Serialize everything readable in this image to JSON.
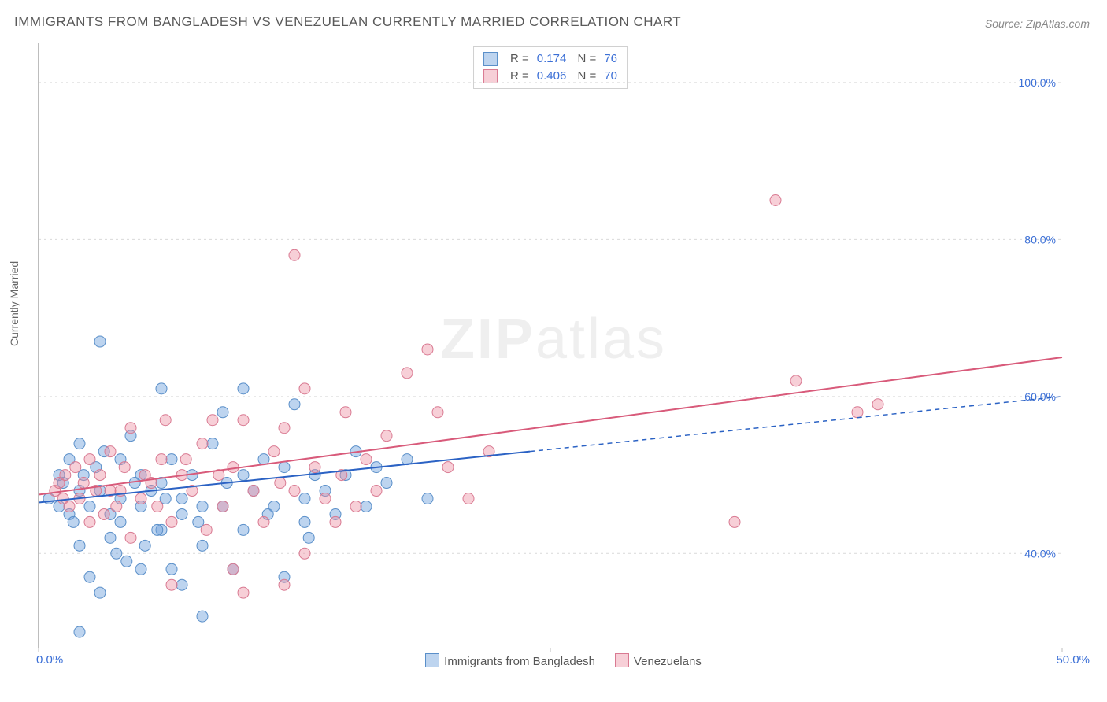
{
  "title": "IMMIGRANTS FROM BANGLADESH VS VENEZUELAN CURRENTLY MARRIED CORRELATION CHART",
  "source": "Source: ZipAtlas.com",
  "ylabel": "Currently Married",
  "watermark": {
    "bold": "ZIP",
    "light": "atlas"
  },
  "chart": {
    "type": "scatter",
    "xlim": [
      0,
      50
    ],
    "ylim": [
      28,
      105
    ],
    "xticks": [
      0,
      25,
      50
    ],
    "xtick_labels": [
      "0.0%",
      "",
      "50.0%"
    ],
    "yticks": [
      40,
      60,
      80,
      100
    ],
    "ytick_labels": [
      "40.0%",
      "60.0%",
      "80.0%",
      "100.0%"
    ],
    "background_color": "#ffffff",
    "grid_color": "#d9d9d9",
    "axis_color": "#bdbdbd",
    "marker_radius": 7,
    "marker_opacity": 0.55,
    "series": [
      {
        "id": "bangladesh",
        "label": "Immigrants from Bangladesh",
        "fill": "rgba(108,160,220,0.45)",
        "stroke": "#5a8fc9",
        "line_color": "#2b62c4",
        "r": 0.174,
        "n": 76,
        "points": [
          [
            0.5,
            47
          ],
          [
            1,
            46
          ],
          [
            1.2,
            49
          ],
          [
            1.5,
            45
          ],
          [
            1.5,
            52
          ],
          [
            1.7,
            44
          ],
          [
            2,
            48
          ],
          [
            2,
            54
          ],
          [
            2,
            41
          ],
          [
            2.2,
            50
          ],
          [
            2.5,
            46
          ],
          [
            2.5,
            37
          ],
          [
            3,
            67
          ],
          [
            3,
            48
          ],
          [
            3.2,
            53
          ],
          [
            3.5,
            45
          ],
          [
            3.5,
            42
          ],
          [
            4,
            52
          ],
          [
            4,
            47
          ],
          [
            4.3,
            39
          ],
          [
            4.5,
            55
          ],
          [
            5,
            46
          ],
          [
            5,
            50
          ],
          [
            5.2,
            41
          ],
          [
            5.5,
            48
          ],
          [
            6,
            61
          ],
          [
            6,
            43
          ],
          [
            6.5,
            52
          ],
          [
            6.5,
            38
          ],
          [
            7,
            47
          ],
          [
            7,
            45
          ],
          [
            7.5,
            50
          ],
          [
            8,
            32
          ],
          [
            8,
            41
          ],
          [
            8.5,
            54
          ],
          [
            9,
            46
          ],
          [
            9,
            58
          ],
          [
            9.5,
            38
          ],
          [
            10,
            61
          ],
          [
            10,
            50
          ],
          [
            10,
            43
          ],
          [
            10.5,
            48
          ],
          [
            11,
            52
          ],
          [
            11.5,
            46
          ],
          [
            12,
            51
          ],
          [
            12,
            37
          ],
          [
            12.5,
            59
          ],
          [
            13,
            47
          ],
          [
            13,
            44
          ],
          [
            13.5,
            50
          ],
          [
            14,
            48
          ],
          [
            15,
            50
          ],
          [
            15.5,
            53
          ],
          [
            16,
            46
          ],
          [
            16.5,
            51
          ],
          [
            17,
            49
          ],
          [
            18,
            52
          ],
          [
            19,
            47
          ],
          [
            2,
            30
          ],
          [
            3,
            35
          ],
          [
            7,
            36
          ],
          [
            5,
            38
          ],
          [
            4,
            44
          ],
          [
            6,
            49
          ],
          [
            8,
            46
          ],
          [
            1,
            50
          ],
          [
            2.8,
            51
          ],
          [
            4.7,
            49
          ],
          [
            6.2,
            47
          ],
          [
            7.8,
            44
          ],
          [
            9.2,
            49
          ],
          [
            11.2,
            45
          ],
          [
            13.2,
            42
          ],
          [
            14.5,
            45
          ],
          [
            3.8,
            40
          ],
          [
            5.8,
            43
          ]
        ],
        "trend": {
          "x1": 0,
          "y1": 46.5,
          "x2": 24,
          "y2": 53,
          "dash_from": 24,
          "x3": 50,
          "y3": 60
        }
      },
      {
        "id": "venezuelans",
        "label": "Venezuelans",
        "fill": "rgba(235,140,160,0.42)",
        "stroke": "#d97a92",
        "line_color": "#d85a7a",
        "r": 0.406,
        "n": 70,
        "points": [
          [
            0.8,
            48
          ],
          [
            1,
            49
          ],
          [
            1.3,
            50
          ],
          [
            1.5,
            46
          ],
          [
            1.8,
            51
          ],
          [
            2,
            47
          ],
          [
            2.2,
            49
          ],
          [
            2.5,
            52
          ],
          [
            2.8,
            48
          ],
          [
            3,
            50
          ],
          [
            3.2,
            45
          ],
          [
            3.5,
            53
          ],
          [
            4,
            48
          ],
          [
            4.2,
            51
          ],
          [
            4.5,
            56
          ],
          [
            5,
            47
          ],
          [
            5.5,
            49
          ],
          [
            6,
            52
          ],
          [
            6.2,
            57
          ],
          [
            6.5,
            44
          ],
          [
            7,
            50
          ],
          [
            7.5,
            48
          ],
          [
            8,
            54
          ],
          [
            8.5,
            57
          ],
          [
            9,
            46
          ],
          [
            9.5,
            51
          ],
          [
            10,
            57
          ],
          [
            10.5,
            48
          ],
          [
            11,
            44
          ],
          [
            11.5,
            53
          ],
          [
            12,
            56
          ],
          [
            12.5,
            48
          ],
          [
            13,
            61
          ],
          [
            13.5,
            51
          ],
          [
            14,
            47
          ],
          [
            14.5,
            44
          ],
          [
            15,
            58
          ],
          [
            12.5,
            78
          ],
          [
            16,
            52
          ],
          [
            17,
            55
          ],
          [
            18,
            63
          ],
          [
            19,
            66
          ],
          [
            19.5,
            58
          ],
          [
            20,
            51
          ],
          [
            21,
            47
          ],
          [
            22,
            53
          ],
          [
            10,
            35
          ],
          [
            12,
            36
          ],
          [
            6.5,
            36
          ],
          [
            4.5,
            42
          ],
          [
            8.2,
            43
          ],
          [
            13,
            40
          ],
          [
            9.5,
            38
          ],
          [
            34,
            44
          ],
          [
            36,
            85
          ],
          [
            37,
            62
          ],
          [
            40,
            58
          ],
          [
            41,
            59
          ],
          [
            2.5,
            44
          ],
          [
            3.8,
            46
          ],
          [
            5.2,
            50
          ],
          [
            7.2,
            52
          ],
          [
            8.8,
            50
          ],
          [
            11.8,
            49
          ],
          [
            14.8,
            50
          ],
          [
            16.5,
            48
          ],
          [
            1.2,
            47
          ],
          [
            3.5,
            48
          ],
          [
            5.8,
            46
          ],
          [
            15.5,
            46
          ]
        ],
        "trend": {
          "x1": 0,
          "y1": 47.5,
          "x2": 50,
          "y2": 65
        }
      }
    ]
  },
  "top_legend": {
    "r_label": "R  =",
    "n_label": "N  ="
  }
}
